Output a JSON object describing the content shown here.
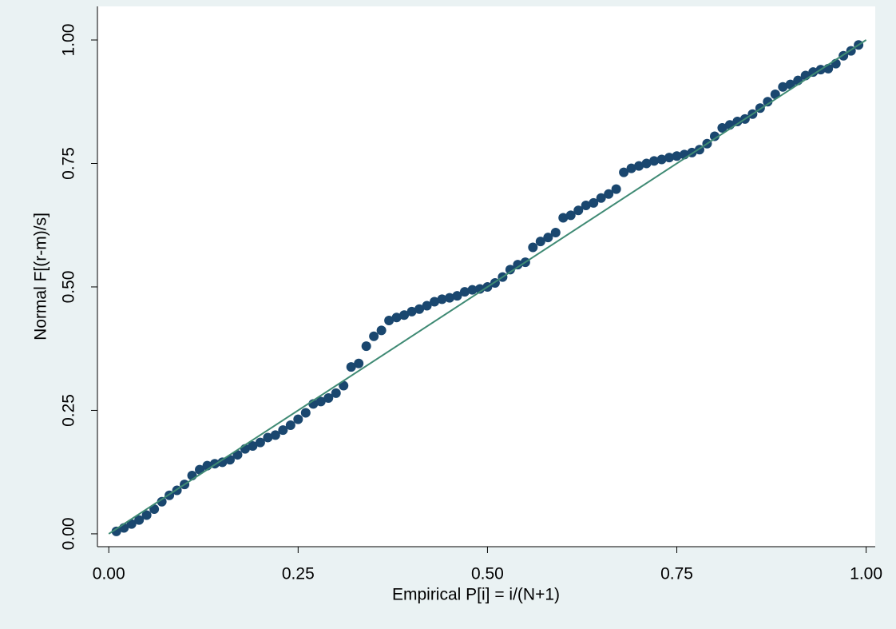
{
  "chart_data": {
    "type": "scatter",
    "x_label": "Empirical P[i] = i/(N+1)",
    "y_label": "Normal F[(r-m)/s]",
    "xlim": [
      -0.015,
      1.012
    ],
    "ylim": [
      -0.026,
      1.068
    ],
    "xticks": [
      {
        "value": 0,
        "label": "0.00"
      },
      {
        "value": 0.25,
        "label": "0.25"
      },
      {
        "value": 0.5,
        "label": "0.50"
      },
      {
        "value": 0.75,
        "label": "0.75"
      },
      {
        "value": 1,
        "label": "1.00"
      }
    ],
    "yticks": [
      {
        "value": 0,
        "label": "0.00"
      },
      {
        "value": 0.25,
        "label": "0.25"
      },
      {
        "value": 0.5,
        "label": "0.50"
      },
      {
        "value": 0.75,
        "label": "0.75"
      },
      {
        "value": 1,
        "label": "1.00"
      }
    ],
    "series": [
      {
        "type": "scatter",
        "color": "#1a476f",
        "x": [
          0.01,
          0.02,
          0.03,
          0.04,
          0.05,
          0.06,
          0.07,
          0.08,
          0.09,
          0.1,
          0.11,
          0.12,
          0.13,
          0.14,
          0.15,
          0.16,
          0.17,
          0.18,
          0.19,
          0.2,
          0.21,
          0.22,
          0.23,
          0.24,
          0.25,
          0.26,
          0.27,
          0.28,
          0.29,
          0.3,
          0.31,
          0.32,
          0.33,
          0.34,
          0.35,
          0.36,
          0.37,
          0.38,
          0.39,
          0.4,
          0.41,
          0.42,
          0.43,
          0.44,
          0.45,
          0.46,
          0.47,
          0.48,
          0.49,
          0.5,
          0.51,
          0.52,
          0.53,
          0.54,
          0.55,
          0.56,
          0.57,
          0.58,
          0.59,
          0.6,
          0.61,
          0.62,
          0.63,
          0.64,
          0.65,
          0.66,
          0.67,
          0.68,
          0.69,
          0.7,
          0.71,
          0.72,
          0.73,
          0.74,
          0.75,
          0.76,
          0.77,
          0.78,
          0.79,
          0.8,
          0.81,
          0.82,
          0.83,
          0.84,
          0.85,
          0.86,
          0.87,
          0.88,
          0.89,
          0.9,
          0.91,
          0.92,
          0.93,
          0.94,
          0.95,
          0.96,
          0.97,
          0.98,
          0.99
        ],
        "values": [
          0.005,
          0.012,
          0.02,
          0.028,
          0.038,
          0.05,
          0.065,
          0.078,
          0.088,
          0.1,
          0.118,
          0.13,
          0.138,
          0.142,
          0.145,
          0.15,
          0.16,
          0.172,
          0.178,
          0.185,
          0.195,
          0.2,
          0.21,
          0.22,
          0.232,
          0.245,
          0.263,
          0.268,
          0.275,
          0.285,
          0.3,
          0.338,
          0.345,
          0.38,
          0.4,
          0.412,
          0.432,
          0.438,
          0.443,
          0.45,
          0.455,
          0.462,
          0.47,
          0.475,
          0.478,
          0.482,
          0.49,
          0.494,
          0.496,
          0.5,
          0.508,
          0.52,
          0.535,
          0.545,
          0.55,
          0.58,
          0.592,
          0.6,
          0.61,
          0.64,
          0.645,
          0.655,
          0.665,
          0.67,
          0.68,
          0.688,
          0.698,
          0.732,
          0.74,
          0.745,
          0.75,
          0.755,
          0.758,
          0.762,
          0.765,
          0.768,
          0.772,
          0.778,
          0.79,
          0.805,
          0.822,
          0.828,
          0.835,
          0.84,
          0.85,
          0.862,
          0.875,
          0.89,
          0.905,
          0.91,
          0.918,
          0.928,
          0.935,
          0.94,
          0.942,
          0.952,
          0.968,
          0.978,
          0.99
        ]
      },
      {
        "type": "line",
        "color": "#3f8a74",
        "x": [
          0,
          1
        ],
        "values": [
          0,
          1
        ]
      }
    ]
  }
}
